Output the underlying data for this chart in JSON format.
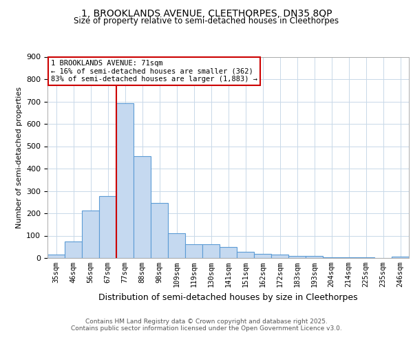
{
  "title_line1": "1, BROOKLANDS AVENUE, CLEETHORPES, DN35 8QP",
  "title_line2": "Size of property relative to semi-detached houses in Cleethorpes",
  "xlabel": "Distribution of semi-detached houses by size in Cleethorpes",
  "ylabel": "Number of semi-detached properties",
  "categories": [
    "35sqm",
    "46sqm",
    "56sqm",
    "67sqm",
    "77sqm",
    "88sqm",
    "98sqm",
    "109sqm",
    "119sqm",
    "130sqm",
    "141sqm",
    "151sqm",
    "162sqm",
    "172sqm",
    "183sqm",
    "193sqm",
    "204sqm",
    "214sqm",
    "225sqm",
    "235sqm",
    "246sqm"
  ],
  "values": [
    14,
    75,
    212,
    277,
    693,
    455,
    245,
    110,
    63,
    63,
    50,
    27,
    18,
    16,
    10,
    8,
    4,
    2,
    2,
    1,
    5
  ],
  "bar_color": "#c5d9f0",
  "bar_edge_color": "#5b9bd5",
  "vline_x": 3.5,
  "annotation_title": "1 BROOKLANDS AVENUE: 71sqm",
  "annotation_line2": "← 16% of semi-detached houses are smaller (362)",
  "annotation_line3": "83% of semi-detached houses are larger (1,883) →",
  "vline_color": "#cc0000",
  "annotation_box_color": "#ffffff",
  "annotation_box_edge": "#cc0000",
  "footer_line1": "Contains HM Land Registry data © Crown copyright and database right 2025.",
  "footer_line2": "Contains public sector information licensed under the Open Government Licence v3.0.",
  "bg_color": "#ffffff",
  "grid_color": "#c8d8e8",
  "ylim": [
    0,
    900
  ],
  "yticks": [
    0,
    100,
    200,
    300,
    400,
    500,
    600,
    700,
    800,
    900
  ]
}
